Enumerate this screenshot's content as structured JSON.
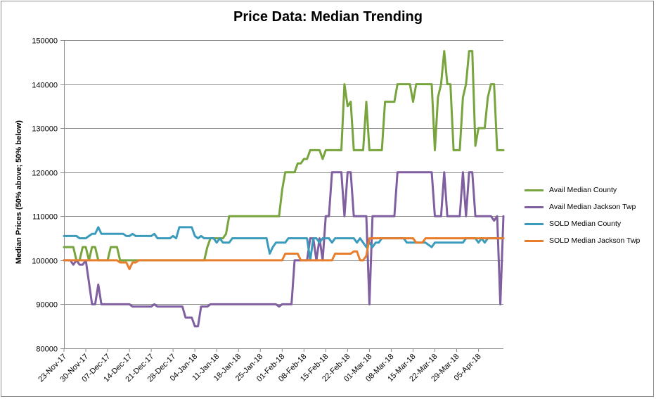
{
  "chart_data": {
    "type": "line",
    "title": "Price Data: Median Trending",
    "ylabel": "Median Prices (50% above; 50% below)",
    "xlabel": "",
    "ylim": [
      80000,
      150000
    ],
    "yticks": [
      80000,
      90000,
      100000,
      110000,
      120000,
      130000,
      140000,
      150000
    ],
    "x_range": [
      "2017-11-23",
      "2018-04-13"
    ],
    "xticks": [
      "23-Nov-17",
      "30-Nov-17",
      "07-Dec-17",
      "14-Dec-17",
      "21-Dec-17",
      "28-Dec-17",
      "04-Jan-18",
      "11-Jan-18",
      "18-Jan-18",
      "25-Jan-18",
      "01-Feb-18",
      "08-Feb-18",
      "15-Feb-18",
      "22-Feb-18",
      "01-Mar-18",
      "08-Mar-18",
      "15-Mar-18",
      "22-Mar-18",
      "29-Mar-18",
      "05-Apr-18"
    ],
    "grid": "horizontal",
    "legend_position": "right",
    "series": [
      {
        "name": "Avail Median County",
        "color": "#77a43c",
        "points": [
          [
            "2017-11-23",
            103000
          ],
          [
            "2017-11-26",
            103000
          ],
          [
            "2017-11-27",
            100000
          ],
          [
            "2017-11-28",
            100000
          ],
          [
            "2017-11-29",
            103000
          ],
          [
            "2017-11-30",
            103000
          ],
          [
            "2017-12-01",
            100000
          ],
          [
            "2017-12-02",
            103000
          ],
          [
            "2017-12-03",
            103000
          ],
          [
            "2017-12-04",
            100000
          ],
          [
            "2017-12-07",
            100000
          ],
          [
            "2017-12-08",
            103000
          ],
          [
            "2017-12-10",
            103000
          ],
          [
            "2017-12-11",
            100000
          ],
          [
            "2017-12-14",
            100000
          ],
          [
            "2018-01-07",
            100000
          ],
          [
            "2018-01-08",
            103000
          ],
          [
            "2018-01-09",
            105000
          ],
          [
            "2018-01-13",
            105000
          ],
          [
            "2018-01-14",
            106000
          ],
          [
            "2018-01-15",
            110000
          ],
          [
            "2018-01-31",
            110000
          ],
          [
            "2018-02-01",
            116000
          ],
          [
            "2018-02-02",
            120000
          ],
          [
            "2018-02-05",
            120000
          ],
          [
            "2018-02-06",
            122000
          ],
          [
            "2018-02-07",
            122000
          ],
          [
            "2018-02-08",
            123000
          ],
          [
            "2018-02-09",
            123000
          ],
          [
            "2018-02-10",
            125000
          ],
          [
            "2018-02-13",
            125000
          ],
          [
            "2018-02-14",
            123000
          ],
          [
            "2018-02-15",
            125000
          ],
          [
            "2018-02-20",
            125000
          ],
          [
            "2018-02-21",
            140000
          ],
          [
            "2018-02-22",
            135000
          ],
          [
            "2018-02-23",
            136000
          ],
          [
            "2018-02-24",
            125000
          ],
          [
            "2018-02-27",
            125000
          ],
          [
            "2018-02-28",
            136000
          ],
          [
            "2018-03-01",
            125000
          ],
          [
            "2018-03-05",
            125000
          ],
          [
            "2018-03-06",
            136000
          ],
          [
            "2018-03-09",
            136000
          ],
          [
            "2018-03-10",
            140000
          ],
          [
            "2018-03-14",
            140000
          ],
          [
            "2018-03-15",
            136000
          ],
          [
            "2018-03-16",
            140000
          ],
          [
            "2018-03-21",
            140000
          ],
          [
            "2018-03-22",
            125000
          ],
          [
            "2018-03-23",
            137000
          ],
          [
            "2018-03-24",
            140000
          ],
          [
            "2018-03-25",
            147500
          ],
          [
            "2018-03-26",
            140000
          ],
          [
            "2018-03-27",
            140000
          ],
          [
            "2018-03-28",
            125000
          ],
          [
            "2018-03-30",
            125000
          ],
          [
            "2018-03-31",
            137000
          ],
          [
            "2018-04-01",
            140000
          ],
          [
            "2018-04-02",
            147500
          ],
          [
            "2018-04-03",
            147500
          ],
          [
            "2018-04-04",
            126000
          ],
          [
            "2018-04-05",
            130000
          ],
          [
            "2018-04-07",
            130000
          ],
          [
            "2018-04-08",
            137000
          ],
          [
            "2018-04-09",
            140000
          ],
          [
            "2018-04-10",
            140000
          ],
          [
            "2018-04-11",
            125000
          ],
          [
            "2018-04-13",
            125000
          ]
        ]
      },
      {
        "name": "Avail Median Jackson Twp",
        "color": "#7f5f9f",
        "points": [
          [
            "2017-11-23",
            100000
          ],
          [
            "2017-11-25",
            100000
          ],
          [
            "2017-11-26",
            99000
          ],
          [
            "2017-11-27",
            100000
          ],
          [
            "2017-11-28",
            99000
          ],
          [
            "2017-11-29",
            99000
          ],
          [
            "2017-11-30",
            100000
          ],
          [
            "2017-12-01",
            95000
          ],
          [
            "2017-12-02",
            90000
          ],
          [
            "2017-12-03",
            90000
          ],
          [
            "2017-12-04",
            94500
          ],
          [
            "2017-12-05",
            90000
          ],
          [
            "2017-12-14",
            90000
          ],
          [
            "2017-12-15",
            89500
          ],
          [
            "2017-12-21",
            89500
          ],
          [
            "2017-12-22",
            90000
          ],
          [
            "2017-12-23",
            89500
          ],
          [
            "2017-12-31",
            89500
          ],
          [
            "2018-01-01",
            87000
          ],
          [
            "2018-01-03",
            87000
          ],
          [
            "2018-01-04",
            85000
          ],
          [
            "2018-01-05",
            85000
          ],
          [
            "2018-01-06",
            89500
          ],
          [
            "2018-01-08",
            89500
          ],
          [
            "2018-01-09",
            90000
          ],
          [
            "2018-01-30",
            90000
          ],
          [
            "2018-01-31",
            89500
          ],
          [
            "2018-02-01",
            90000
          ],
          [
            "2018-02-04",
            90000
          ],
          [
            "2018-02-05",
            100000
          ],
          [
            "2018-02-09",
            100000
          ],
          [
            "2018-02-10",
            105000
          ],
          [
            "2018-02-11",
            105000
          ],
          [
            "2018-02-12",
            100000
          ],
          [
            "2018-02-13",
            105000
          ],
          [
            "2018-02-14",
            100000
          ],
          [
            "2018-02-15",
            110000
          ],
          [
            "2018-02-16",
            110000
          ],
          [
            "2018-02-17",
            120000
          ],
          [
            "2018-02-20",
            120000
          ],
          [
            "2018-02-21",
            110000
          ],
          [
            "2018-02-22",
            120000
          ],
          [
            "2018-02-23",
            120000
          ],
          [
            "2018-02-24",
            110000
          ],
          [
            "2018-02-28",
            110000
          ],
          [
            "2018-03-01",
            90000
          ],
          [
            "2018-03-02",
            110000
          ],
          [
            "2018-03-09",
            110000
          ],
          [
            "2018-03-10",
            120000
          ],
          [
            "2018-03-21",
            120000
          ],
          [
            "2018-03-22",
            110000
          ],
          [
            "2018-03-24",
            110000
          ],
          [
            "2018-03-25",
            120000
          ],
          [
            "2018-03-26",
            110000
          ],
          [
            "2018-03-30",
            110000
          ],
          [
            "2018-03-31",
            120000
          ],
          [
            "2018-04-01",
            110000
          ],
          [
            "2018-04-02",
            120000
          ],
          [
            "2018-04-03",
            120000
          ],
          [
            "2018-04-04",
            110000
          ],
          [
            "2018-04-09",
            110000
          ],
          [
            "2018-04-10",
            109000
          ],
          [
            "2018-04-11",
            110000
          ],
          [
            "2018-04-12",
            90000
          ],
          [
            "2018-04-13",
            110000
          ]
        ]
      },
      {
        "name": "SOLD Median County",
        "color": "#3b9bbc",
        "points": [
          [
            "2017-11-23",
            105500
          ],
          [
            "2017-11-27",
            105500
          ],
          [
            "2017-11-28",
            105000
          ],
          [
            "2017-11-30",
            105000
          ],
          [
            "2017-12-01",
            105500
          ],
          [
            "2017-12-02",
            106000
          ],
          [
            "2017-12-03",
            106000
          ],
          [
            "2017-12-04",
            107500
          ],
          [
            "2017-12-05",
            106000
          ],
          [
            "2017-12-12",
            106000
          ],
          [
            "2017-12-13",
            105500
          ],
          [
            "2017-12-14",
            105500
          ],
          [
            "2017-12-15",
            106000
          ],
          [
            "2017-12-16",
            105500
          ],
          [
            "2017-12-21",
            105500
          ],
          [
            "2017-12-22",
            106000
          ],
          [
            "2017-12-23",
            105000
          ],
          [
            "2017-12-27",
            105000
          ],
          [
            "2017-12-28",
            105500
          ],
          [
            "2017-12-29",
            105000
          ],
          [
            "2017-12-30",
            107500
          ],
          [
            "2018-01-03",
            107500
          ],
          [
            "2018-01-04",
            105500
          ],
          [
            "2018-01-05",
            105000
          ],
          [
            "2018-01-06",
            105500
          ],
          [
            "2018-01-07",
            105000
          ],
          [
            "2018-01-10",
            105000
          ],
          [
            "2018-01-11",
            104000
          ],
          [
            "2018-01-12",
            105000
          ],
          [
            "2018-01-13",
            104000
          ],
          [
            "2018-01-15",
            104000
          ],
          [
            "2018-01-16",
            105000
          ],
          [
            "2018-01-27",
            105000
          ],
          [
            "2018-01-28",
            101500
          ],
          [
            "2018-01-29",
            103000
          ],
          [
            "2018-01-30",
            104000
          ],
          [
            "2018-02-02",
            104000
          ],
          [
            "2018-02-03",
            105000
          ],
          [
            "2018-02-09",
            105000
          ],
          [
            "2018-02-10",
            100000
          ],
          [
            "2018-02-11",
            105000
          ],
          [
            "2018-02-12",
            105000
          ],
          [
            "2018-02-13",
            104000
          ],
          [
            "2018-02-14",
            105000
          ],
          [
            "2018-02-16",
            105000
          ],
          [
            "2018-02-17",
            104000
          ],
          [
            "2018-02-18",
            105000
          ],
          [
            "2018-02-24",
            105000
          ],
          [
            "2018-02-25",
            104000
          ],
          [
            "2018-02-26",
            105000
          ],
          [
            "2018-02-27",
            104000
          ],
          [
            "2018-02-28",
            103000
          ],
          [
            "2018-03-01",
            104000
          ],
          [
            "2018-03-02",
            103000
          ],
          [
            "2018-03-03",
            104000
          ],
          [
            "2018-03-04",
            104000
          ],
          [
            "2018-03-05",
            105000
          ],
          [
            "2018-03-12",
            105000
          ],
          [
            "2018-03-13",
            104000
          ],
          [
            "2018-03-19",
            104000
          ],
          [
            "2018-03-21",
            103000
          ],
          [
            "2018-03-22",
            104000
          ],
          [
            "2018-03-31",
            104000
          ],
          [
            "2018-04-01",
            105000
          ],
          [
            "2018-04-04",
            105000
          ],
          [
            "2018-04-05",
            104000
          ],
          [
            "2018-04-06",
            105000
          ],
          [
            "2018-04-07",
            104000
          ],
          [
            "2018-04-08",
            105000
          ],
          [
            "2018-04-13",
            105000
          ]
        ]
      },
      {
        "name": "SOLD Median Jackson Twp",
        "color": "#e87d2b",
        "points": [
          [
            "2017-11-23",
            100000
          ],
          [
            "2017-12-10",
            100000
          ],
          [
            "2017-12-11",
            99500
          ],
          [
            "2017-12-13",
            99500
          ],
          [
            "2017-12-14",
            98000
          ],
          [
            "2017-12-15",
            99500
          ],
          [
            "2017-12-16",
            99500
          ],
          [
            "2017-12-17",
            100000
          ],
          [
            "2018-02-01",
            100000
          ],
          [
            "2018-02-02",
            101500
          ],
          [
            "2018-02-06",
            101500
          ],
          [
            "2018-02-07",
            100000
          ],
          [
            "2018-02-17",
            100000
          ],
          [
            "2018-02-18",
            101500
          ],
          [
            "2018-02-23",
            101500
          ],
          [
            "2018-02-24",
            102000
          ],
          [
            "2018-02-25",
            102000
          ],
          [
            "2018-02-26",
            100000
          ],
          [
            "2018-02-27",
            100000
          ],
          [
            "2018-02-28",
            101000
          ],
          [
            "2018-03-01",
            105000
          ],
          [
            "2018-03-15",
            105000
          ],
          [
            "2018-03-16",
            104000
          ],
          [
            "2018-03-18",
            104000
          ],
          [
            "2018-03-19",
            105000
          ],
          [
            "2018-04-13",
            105000
          ]
        ]
      }
    ]
  }
}
